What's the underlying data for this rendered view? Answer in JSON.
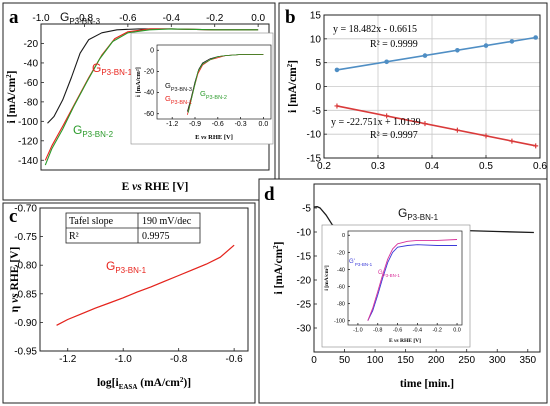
{
  "colors": {
    "black": "#1a1a1a",
    "red": "#e8231c",
    "green": "#2a9a2a",
    "blue_line": "#4f8ec4",
    "red_line": "#d93a3a",
    "blue_series": "#3a3ad8",
    "magenta_series": "#d8309a",
    "grid": "#c8c8c8"
  },
  "chart_data": [
    {
      "panel": "a",
      "type": "line",
      "xlabel_parts": [
        "E ",
        "vs",
        " RHE [V]"
      ],
      "ylabel_parts": [
        "i [mA/cm",
        "2",
        "]"
      ],
      "xlim": [
        -1.0,
        0.05
      ],
      "ylim": [
        -150,
        0
      ],
      "xticks": [
        "-1.0",
        "-0.8",
        "-0.6",
        "-0.4",
        "-0.2",
        "0.0"
      ],
      "xtick_values": [
        -1.0,
        -0.8,
        -0.6,
        -0.4,
        -0.2,
        0.0
      ],
      "yticks": [
        "-20",
        "-40",
        "-60",
        "-80",
        "-100",
        "-120",
        "-140"
      ],
      "ytick_values": [
        -20,
        -40,
        -60,
        -80,
        -100,
        -120,
        -140
      ],
      "grid": false,
      "series": [
        {
          "label_main": "G",
          "label_sub": "P3-BN-3",
          "color_key": "black",
          "x": [
            0.0,
            -0.2,
            -0.4,
            -0.55,
            -0.65,
            -0.72,
            -0.78,
            -0.82,
            -0.86,
            -0.9,
            -0.94,
            -0.97
          ],
          "y": [
            -6,
            -6,
            -5,
            -5,
            -6,
            -9,
            -16,
            -30,
            -55,
            -78,
            -95,
            -102
          ]
        },
        {
          "label_main": "G",
          "label_sub": "P3-BN-1",
          "color_key": "red",
          "x": [
            0.0,
            -0.2,
            -0.4,
            -0.5,
            -0.6,
            -0.66,
            -0.72,
            -0.78,
            -0.84,
            -0.9,
            -0.95,
            -0.98
          ],
          "y": [
            -6,
            -6,
            -5,
            -5,
            -8,
            -15,
            -32,
            -55,
            -80,
            -105,
            -125,
            -140
          ]
        },
        {
          "label_main": "G",
          "label_sub": "P3-BN-2",
          "color_key": "green",
          "x": [
            0.0,
            -0.2,
            -0.4,
            -0.5,
            -0.6,
            -0.67,
            -0.73,
            -0.79,
            -0.85,
            -0.9,
            -0.95,
            -0.98
          ],
          "y": [
            -6,
            -6,
            -5,
            -6,
            -9,
            -18,
            -36,
            -60,
            -85,
            -108,
            -128,
            -145
          ]
        }
      ],
      "inset": {
        "xlabel_parts": [
          "E ",
          "vs",
          " RHE [V]"
        ],
        "ylabel": "i [mA/cm²]",
        "xlim": [
          -1.4,
          0.1
        ],
        "ylim": [
          -65,
          5
        ],
        "xticks": [
          "-1.2",
          "-0.9",
          "-0.6",
          "-0.3",
          "0.0"
        ],
        "xtick_values": [
          -1.2,
          -0.9,
          -0.6,
          -0.3,
          0.0
        ],
        "yticks": [
          "0",
          "-20",
          "-40",
          "-60"
        ],
        "ytick_values": [
          0,
          -20,
          -40,
          -60
        ],
        "series": [
          {
            "label_main": "G",
            "label_sub": "P3-BN-3",
            "color_key": "black",
            "x": [
              0.0,
              -0.3,
              -0.5,
              -0.6,
              -0.7,
              -0.8,
              -0.85,
              -0.9,
              -0.95,
              -1.0
            ],
            "y": [
              -4,
              -4,
              -5,
              -6,
              -8,
              -12,
              -18,
              -30,
              -45,
              -58
            ]
          },
          {
            "label_main": "G",
            "label_sub": "P3-BN-1",
            "color_key": "red",
            "x": [
              0.0,
              -0.3,
              -0.5,
              -0.6,
              -0.7,
              -0.8,
              -0.86,
              -0.91,
              -0.96,
              -1.0
            ],
            "y": [
              -4,
              -4,
              -5,
              -7,
              -9,
              -14,
              -22,
              -35,
              -50,
              -61
            ]
          },
          {
            "label_main": "G",
            "label_sub": "P3-BN-2",
            "color_key": "green",
            "x": [
              0.0,
              -0.3,
              -0.5,
              -0.6,
              -0.7,
              -0.8,
              -0.86,
              -0.9,
              -0.95,
              -0.99
            ],
            "y": [
              -4,
              -4,
              -5,
              -6,
              -9,
              -13,
              -20,
              -32,
              -47,
              -59
            ]
          }
        ]
      }
    },
    {
      "panel": "b",
      "type": "scatter",
      "xlabel_parts": [
        "v",
        "1/2",
        " [V/s]"
      ],
      "ylabel_parts": [
        "i [mA/cm",
        "2",
        "]"
      ],
      "xlim": [
        0.2,
        0.6
      ],
      "ylim": [
        -15,
        15
      ],
      "xticks": [
        "0.2",
        "0.3",
        "0.4",
        "0.5",
        "0.6"
      ],
      "xtick_values": [
        0.2,
        0.3,
        0.4,
        0.5,
        0.6
      ],
      "yticks": [
        "15",
        "10",
        "5",
        "0",
        "-5",
        "-10",
        "-15"
      ],
      "ytick_values": [
        15,
        10,
        5,
        0,
        -5,
        -10,
        -15
      ],
      "grid": true,
      "series": [
        {
          "color_key": "blue_line",
          "marker": "circle",
          "x": [
            0.224,
            0.316,
            0.387,
            0.447,
            0.5,
            0.548,
            0.592
          ],
          "y": [
            3.48,
            5.18,
            6.49,
            7.6,
            8.58,
            9.46,
            10.28
          ],
          "equation": "y = 18.482x - 0.6615",
          "r2": "R² = 0.9999"
        },
        {
          "color_key": "red_line",
          "marker": "plus",
          "x": [
            0.224,
            0.316,
            0.387,
            0.447,
            0.5,
            0.548,
            0.592
          ],
          "y": [
            -4.08,
            -6.17,
            -7.79,
            -9.16,
            -10.36,
            -11.45,
            -12.45
          ],
          "equation": "y = -22.751x + 1.0139",
          "r2": "R² = 0.9997"
        }
      ]
    },
    {
      "panel": "c",
      "type": "line",
      "xlabel_parts": [
        "log[i",
        "EASA",
        " (mA/cm",
        "2",
        ")]"
      ],
      "ylabel_parts": [
        "η ",
        "vs",
        " RHE [V]"
      ],
      "xlim": [
        -1.3,
        -0.55
      ],
      "ylim": [
        -0.95,
        -0.7
      ],
      "xticks": [
        "-1.2",
        "-1.0",
        "-0.8",
        "-0.6"
      ],
      "xtick_values": [
        -1.2,
        -1.0,
        -0.8,
        -0.6
      ],
      "yticks": [
        "-0.70",
        "-0.75",
        "-0.80",
        "-0.85",
        "-0.90",
        "-0.95"
      ],
      "ytick_values": [
        -0.7,
        -0.75,
        -0.8,
        -0.85,
        -0.9,
        -0.95
      ],
      "grid": false,
      "table": {
        "rows": [
          [
            "Tafel slope",
            "190 mV/dec"
          ],
          [
            "R²",
            "0.9975"
          ]
        ]
      },
      "series": [
        {
          "label_main": "G",
          "label_sub": "P3-BN-1",
          "color_key": "red",
          "x": [
            -1.24,
            -1.2,
            -1.15,
            -1.1,
            -1.05,
            -1.0,
            -0.95,
            -0.9,
            -0.85,
            -0.8,
            -0.75,
            -0.7,
            -0.65,
            -0.6
          ],
          "y": [
            -0.905,
            -0.895,
            -0.885,
            -0.875,
            -0.866,
            -0.857,
            -0.847,
            -0.838,
            -0.828,
            -0.818,
            -0.808,
            -0.798,
            -0.786,
            -0.765
          ]
        }
      ]
    },
    {
      "panel": "d",
      "type": "line",
      "xlabel": "time [min.]",
      "ylabel_parts": [
        "i [mA/cm",
        "2",
        "]"
      ],
      "xlim": [
        0,
        370
      ],
      "ylim": [
        -35,
        0
      ],
      "xticks": [
        "0",
        "50",
        "100",
        "150",
        "200",
        "250",
        "300",
        "350"
      ],
      "xtick_values": [
        0,
        50,
        100,
        150,
        200,
        250,
        300,
        350
      ],
      "yticks": [
        "-5",
        "-10",
        "-15",
        "-20",
        "-25",
        "-30"
      ],
      "ytick_values": [
        -5,
        -10,
        -15,
        -20,
        -25,
        -30
      ],
      "grid": false,
      "series": [
        {
          "label_main": "G",
          "label_sub": "P3-BN-1",
          "color_key": "black",
          "x": [
            0,
            5,
            10,
            20,
            30,
            40,
            50,
            60,
            80,
            100,
            150,
            200,
            250,
            300,
            360
          ],
          "y": [
            -4.8,
            -4.7,
            -5.0,
            -6.5,
            -8.5,
            -9.6,
            -10.0,
            -9.8,
            -9.3,
            -9.0,
            -9.2,
            -9.5,
            -9.7,
            -9.9,
            -10.1
          ]
        }
      ],
      "inset": {
        "xlabel_parts": [
          "E ",
          "vs",
          " RHE [V]"
        ],
        "ylabel": "i [mA/cm²]",
        "xlim": [
          -1.1,
          0.05
        ],
        "ylim": [
          -105,
          5
        ],
        "xticks": [
          "-1.0",
          "-0.8",
          "-0.6",
          "-0.4",
          "-0.2",
          "0.0"
        ],
        "xtick_values": [
          -1.0,
          -0.8,
          -0.6,
          -0.4,
          -0.2,
          0.0
        ],
        "yticks": [
          "0",
          "-20",
          "-40",
          "-60",
          "-80",
          "-100"
        ],
        "ytick_values": [
          0,
          -20,
          -40,
          -60,
          -80,
          -100
        ],
        "series": [
          {
            "label_main": "G'",
            "label_sub": "P3-BN-1",
            "color_key": "blue_series",
            "x": [
              0.0,
              -0.2,
              -0.4,
              -0.5,
              -0.6,
              -0.65,
              -0.7,
              -0.75,
              -0.8,
              -0.85,
              -0.9
            ],
            "y": [
              -12,
              -12,
              -11,
              -12,
              -14,
              -20,
              -32,
              -50,
              -70,
              -88,
              -100
            ]
          },
          {
            "label_main": "G",
            "label_sub": "P3-BN-1",
            "color_key": "magenta_series",
            "x": [
              0.0,
              -0.2,
              -0.4,
              -0.5,
              -0.6,
              -0.65,
              -0.7,
              -0.75,
              -0.8,
              -0.85,
              -0.9
            ],
            "y": [
              -5,
              -6,
              -6,
              -7,
              -10,
              -16,
              -28,
              -46,
              -66,
              -85,
              -100
            ]
          }
        ]
      }
    }
  ]
}
